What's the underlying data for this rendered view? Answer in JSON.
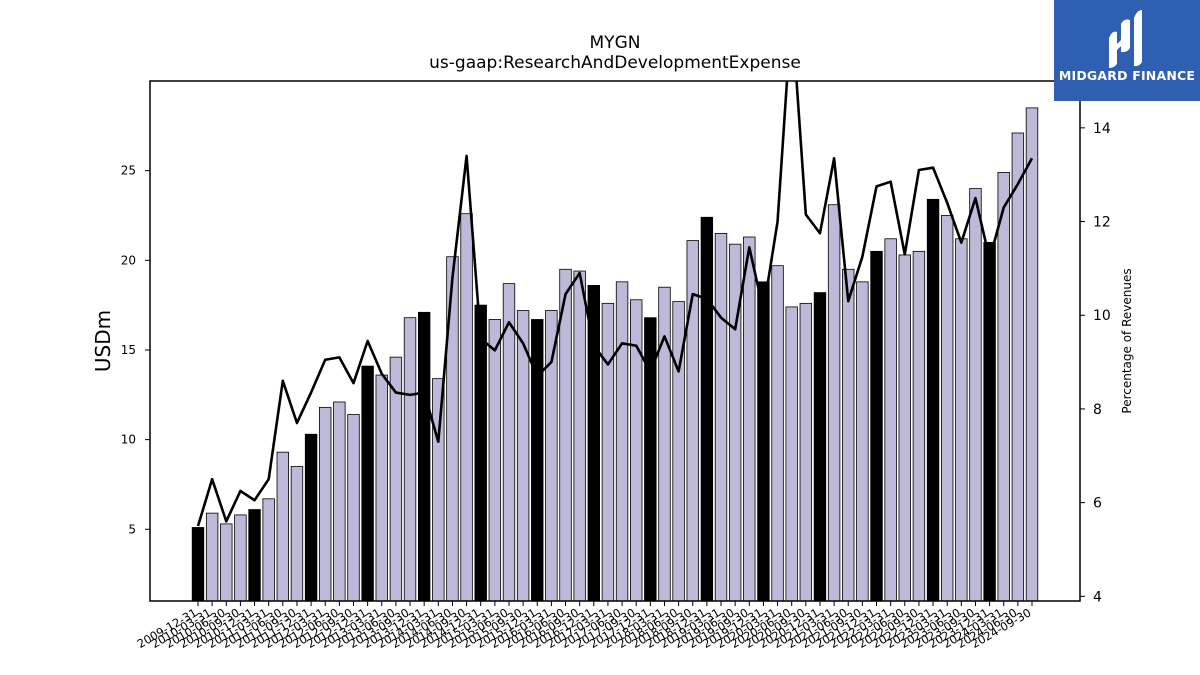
{
  "chart_data": {
    "type": "bar",
    "title": "MYGN",
    "subtitle": "us-gaap:ResearchAndDevelopmentExpense",
    "ylabel": "USDm",
    "y2label": "Percentage of Revenues",
    "ylim": [
      1,
      30
    ],
    "y2lim": [
      3.9,
      15.0
    ],
    "yticks": [
      5,
      10,
      15,
      20,
      25
    ],
    "y2ticks": [
      4,
      6,
      8,
      10,
      12,
      14
    ],
    "categories": [
      "2009-12-31",
      "2010-03-31",
      "2010-06-30",
      "2010-09-30",
      "2010-12-31",
      "2011-03-31",
      "2011-06-30",
      "2011-09-30",
      "2011-12-31",
      "2012-03-31",
      "2012-06-30",
      "2012-09-30",
      "2012-12-31",
      "2013-03-31",
      "2013-06-30",
      "2013-09-30",
      "2013-12-31",
      "2014-03-31",
      "2014-06-30",
      "2014-09-30",
      "2014-12-31",
      "2015-03-31",
      "2015-06-30",
      "2015-09-30",
      "2015-12-31",
      "2016-03-31",
      "2016-06-30",
      "2016-09-30",
      "2016-12-31",
      "2017-03-31",
      "2017-06-30",
      "2017-09-30",
      "2017-12-31",
      "2018-03-31",
      "2018-06-30",
      "2018-09-30",
      "2018-12-31",
      "2019-03-31",
      "2019-06-30",
      "2019-09-30",
      "2019-12-31",
      "2020-03-31",
      "2020-06-30",
      "2020-09-30",
      "2020-12-31",
      "2021-03-31",
      "2021-06-30",
      "2021-09-30",
      "2021-12-31",
      "2022-03-31",
      "2022-06-30",
      "2022-09-30",
      "2022-12-31",
      "2023-03-31",
      "2023-06-30",
      "2023-09-30",
      "2023-12-31",
      "2024-03-31",
      "2024-06-30",
      "2024-09-30"
    ],
    "series": [
      {
        "kind": "bar",
        "values": [
          5.1,
          5.9,
          5.3,
          5.8,
          6.1,
          6.7,
          9.3,
          8.5,
          10.3,
          11.8,
          12.1,
          11.4,
          14.1,
          13.6,
          14.6,
          16.8,
          17.1,
          13.4,
          20.2,
          22.6,
          17.5,
          16.7,
          18.7,
          17.2,
          16.7,
          17.2,
          19.5,
          19.4,
          18.6,
          17.6,
          18.8,
          17.8,
          16.8,
          18.5,
          17.7,
          21.1,
          22.4,
          21.5,
          20.9,
          21.3,
          18.8,
          19.7,
          17.4,
          17.6,
          18.2,
          23.1,
          19.5,
          18.8,
          20.5,
          21.2,
          20.3,
          20.5,
          23.4,
          22.5,
          21.2,
          24.0,
          21.0,
          24.9,
          27.1,
          28.5
        ]
      },
      {
        "kind": "line",
        "axis": "right",
        "values": [
          5.5,
          6.5,
          5.6,
          6.25,
          6.05,
          6.5,
          8.6,
          7.7,
          8.35,
          9.05,
          9.1,
          8.55,
          9.45,
          8.75,
          8.35,
          8.3,
          8.35,
          7.3,
          10.8,
          13.4,
          9.5,
          9.25,
          9.85,
          9.4,
          8.7,
          9.0,
          10.45,
          10.9,
          9.35,
          8.95,
          9.4,
          9.35,
          8.8,
          9.55,
          8.8,
          10.45,
          10.35,
          9.95,
          9.7,
          11.45,
          10.1,
          12.0,
          16.5,
          12.15,
          11.75,
          13.35,
          10.3,
          11.25,
          12.75,
          12.85,
          11.3,
          13.1,
          13.15,
          12.4,
          11.55,
          12.5,
          11.2,
          12.3,
          12.8,
          13.35
        ]
      }
    ],
    "highlight_color": "#000000",
    "bar_color": "#bcb9d9"
  },
  "logo": {
    "text": "MIDGARD FINANCE",
    "color": "#2f5fb0"
  }
}
